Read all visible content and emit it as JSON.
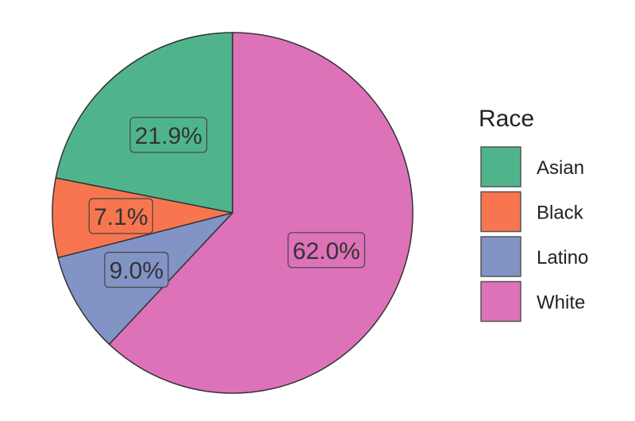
{
  "chart_data": {
    "type": "pie",
    "title": "",
    "categories": [
      "Asian",
      "Black",
      "Latino",
      "White"
    ],
    "values": [
      21.9,
      7.1,
      9.0,
      62.0
    ],
    "labels": [
      "21.9%",
      "7.1%",
      "9.0%",
      "62.0%"
    ],
    "colors": [
      "#4fb48c",
      "#f77650",
      "#8293c6",
      "#dd72b9"
    ],
    "legend": {
      "title": "Race",
      "placement": "right",
      "entries": [
        "Asian",
        "Black",
        "Latino",
        "White"
      ]
    }
  }
}
